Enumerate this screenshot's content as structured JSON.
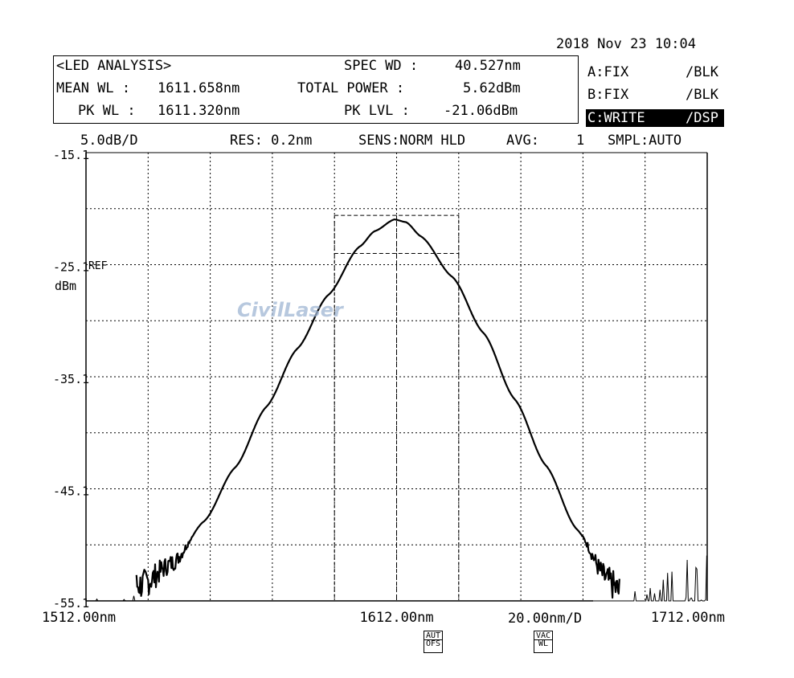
{
  "header": {
    "datetime": "2018 Nov 23 10:04",
    "mode": "<LED ANALYSIS>",
    "mean_wl_label": "MEAN WL :",
    "mean_wl_value": "1611.658nm",
    "pk_wl_label": "PK WL :",
    "pk_wl_value": "1611.320nm",
    "spec_wd_label": "SPEC WD :",
    "spec_wd_value": "40.527nm",
    "total_power_label": "TOTAL POWER :",
    "total_power_value": "5.62dBm",
    "pk_lvl_label": "PK LVL :",
    "pk_lvl_value": "-21.06dBm"
  },
  "traces": [
    {
      "name": "A:FIX",
      "mode": "/BLK"
    },
    {
      "name": "B:FIX",
      "mode": "/BLK"
    },
    {
      "name": "C:WRITE",
      "mode": "/DSP"
    }
  ],
  "settings": {
    "scale": "5.0dB/D",
    "res": "RES: 0.2nm",
    "sens": "SENS:NORM HLD",
    "avg_label": "AVG:",
    "avg_value": "1",
    "smpl": "SMPL:AUTO"
  },
  "ref_label": "REF",
  "y_unit": "dBm",
  "buttons": {
    "aut_ofs": [
      "AUT",
      "OFS"
    ],
    "vac_wl": [
      "VAC",
      "WL"
    ]
  },
  "watermark": "CivilLaser",
  "chart_data": {
    "type": "line",
    "xlim": [
      1512.0,
      1712.0
    ],
    "ylim": [
      -55.1,
      -15.1
    ],
    "ytick_labels": [
      "-15.1",
      "-25.1",
      "-35.1",
      "-45.1",
      "-55.1"
    ],
    "yticks": [
      -15.1,
      -25.1,
      -35.1,
      -45.1,
      -55.1
    ],
    "xtick_labels": [
      "1512.00nm",
      "1612.00nm",
      "1712.00nm"
    ],
    "xticks": [
      1512.0,
      1612.0,
      1712.0
    ],
    "x_div_label": "20.00nm/D",
    "grid": true,
    "series": [
      {
        "x": [
          1512,
          1520,
          1530,
          1540,
          1550,
          1560,
          1570,
          1580,
          1590,
          1600,
          1605,
          1611.3,
          1615,
          1620,
          1630,
          1640,
          1650,
          1660,
          1670,
          1680,
          1684,
          1690,
          1700,
          1712
        ],
        "y": [
          -55.0,
          -54.8,
          -54.2,
          -52.0,
          -48.0,
          -43.2,
          -37.8,
          -32.6,
          -27.8,
          -23.5,
          -22.1,
          -21.06,
          -21.3,
          -22.6,
          -26.2,
          -31.2,
          -37.1,
          -43.0,
          -48.7,
          -53.8,
          -55.0,
          -54.0,
          -52.5,
          -50.0
        ]
      }
    ],
    "annotation_box": {
      "x": [
        1592,
        1632
      ],
      "y": [
        -24.1,
        -21.06
      ]
    }
  }
}
